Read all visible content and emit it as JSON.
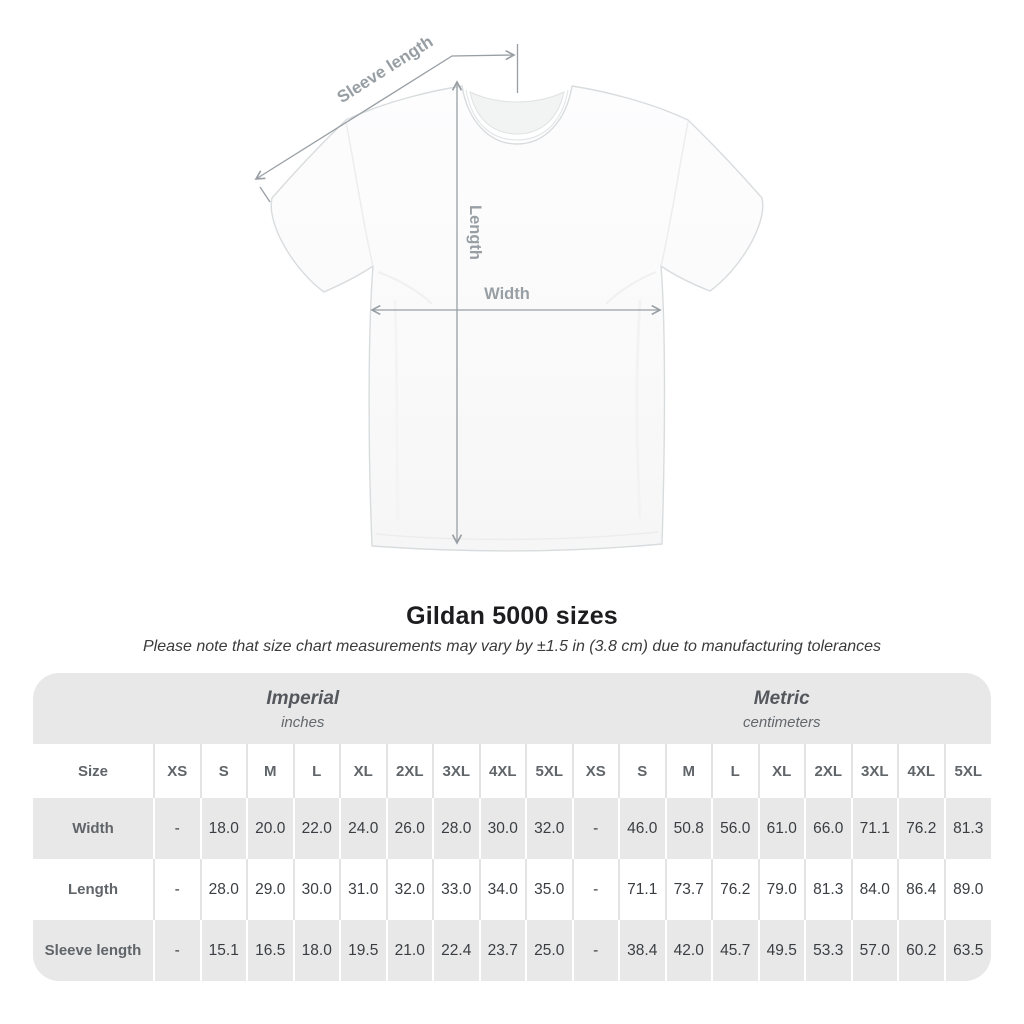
{
  "title": "Gildan 5000 sizes",
  "subtitle": "Please note that size chart measurements may vary by ±1.5 in (3.8 cm) due to manufacturing tolerances",
  "figure": {
    "sleeve_label": "Sleeve length",
    "length_label": "Length",
    "width_label": "Width",
    "annotation_color": "#989fa4",
    "shirt_outline_color": "#d9dcde"
  },
  "table": {
    "size_col_header": "Size",
    "unit_groups": [
      {
        "name": "Imperial",
        "sub": "inches"
      },
      {
        "name": "Metric",
        "sub": "centimeters"
      }
    ],
    "sizes": [
      "XS",
      "S",
      "M",
      "L",
      "XL",
      "2XL",
      "3XL",
      "4XL",
      "5XL"
    ],
    "band_color": "#e8e8e8",
    "rows": [
      {
        "label": "Width",
        "imperial": [
          "-",
          "18.0",
          "20.0",
          "22.0",
          "24.0",
          "26.0",
          "28.0",
          "30.0",
          "32.0"
        ],
        "metric": [
          "-",
          "46.0",
          "50.8",
          "56.0",
          "61.0",
          "66.0",
          "71.1",
          "76.2",
          "81.3"
        ]
      },
      {
        "label": "Length",
        "imperial": [
          "-",
          "28.0",
          "29.0",
          "30.0",
          "31.0",
          "32.0",
          "33.0",
          "34.0",
          "35.0"
        ],
        "metric": [
          "-",
          "71.1",
          "73.7",
          "76.2",
          "79.0",
          "81.3",
          "84.0",
          "86.4",
          "89.0"
        ]
      },
      {
        "label": "Sleeve length",
        "imperial": [
          "-",
          "15.1",
          "16.5",
          "18.0",
          "19.5",
          "21.0",
          "22.4",
          "23.7",
          "25.0"
        ],
        "metric": [
          "-",
          "38.4",
          "42.0",
          "45.7",
          "49.5",
          "53.3",
          "57.0",
          "60.2",
          "63.5"
        ]
      }
    ]
  },
  "chart_data": {
    "type": "table",
    "title": "Gildan 5000 sizes",
    "note": "Please note that size chart measurements may vary by ±1.5 in (3.8 cm) due to manufacturing tolerances",
    "unit_groups": [
      "Imperial (inches)",
      "Metric (centimeters)"
    ],
    "sizes": [
      "XS",
      "S",
      "M",
      "L",
      "XL",
      "2XL",
      "3XL",
      "4XL",
      "5XL"
    ],
    "measurements": [
      {
        "measurement": "Width",
        "imperial_in": [
          "-",
          18.0,
          20.0,
          22.0,
          24.0,
          26.0,
          28.0,
          30.0,
          32.0
        ],
        "metric_cm": [
          "-",
          46.0,
          50.8,
          56.0,
          61.0,
          66.0,
          71.1,
          76.2,
          81.3
        ]
      },
      {
        "measurement": "Length",
        "imperial_in": [
          "-",
          28.0,
          29.0,
          30.0,
          31.0,
          32.0,
          33.0,
          34.0,
          35.0
        ],
        "metric_cm": [
          "-",
          71.1,
          73.7,
          76.2,
          79.0,
          81.3,
          84.0,
          86.4,
          89.0
        ]
      },
      {
        "measurement": "Sleeve length",
        "imperial_in": [
          "-",
          15.1,
          16.5,
          18.0,
          19.5,
          21.0,
          22.4,
          23.7,
          25.0
        ],
        "metric_cm": [
          "-",
          38.4,
          42.0,
          45.7,
          49.5,
          53.3,
          57.0,
          60.2,
          63.5
        ]
      }
    ]
  }
}
